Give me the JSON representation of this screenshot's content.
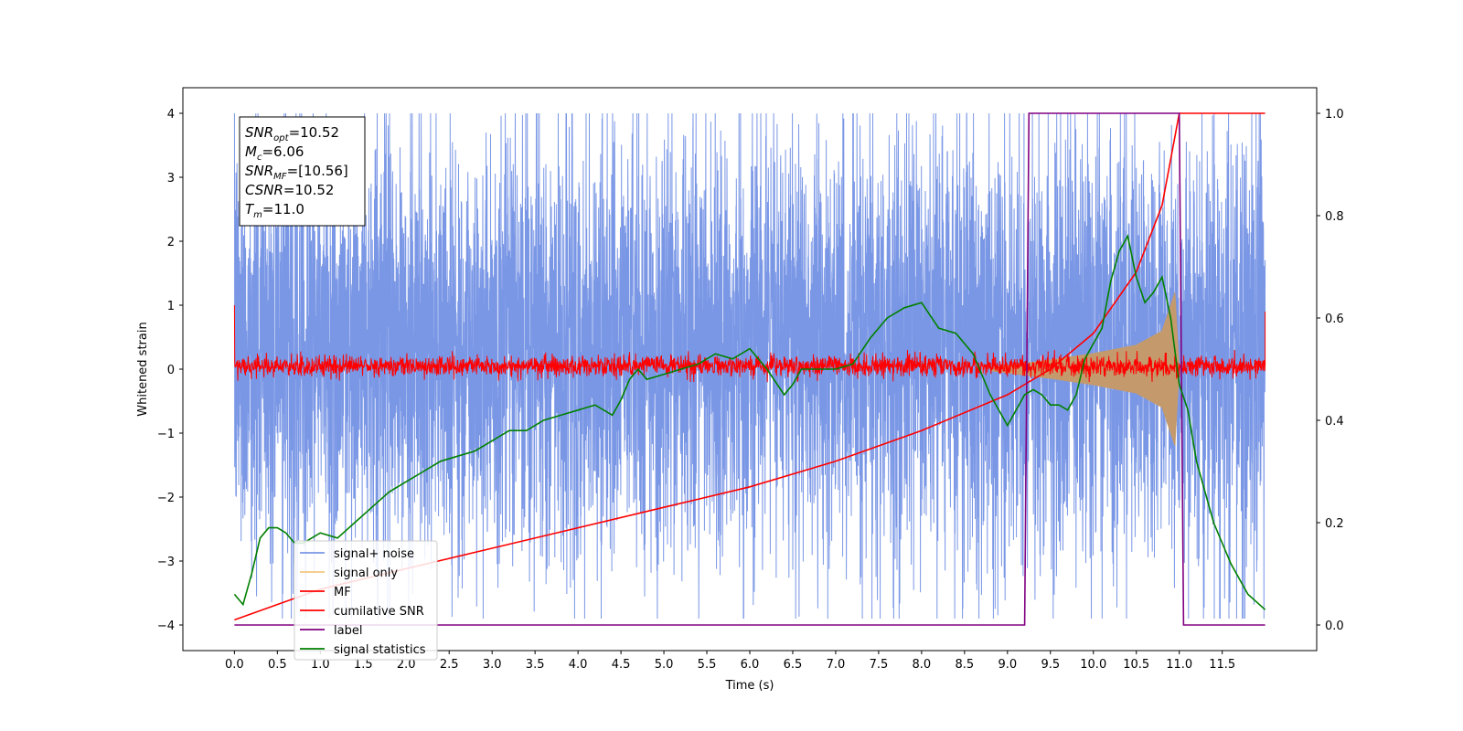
{
  "chart_data": {
    "type": "line",
    "xlabel": "Time (s)",
    "ylabel": "Whitened strain",
    "ylabel_right": "",
    "xlim": [
      -0.6,
      12.6
    ],
    "ylim": [
      -4.4,
      4.4
    ],
    "ylim_right": [
      -0.05,
      1.05
    ],
    "x_ticks": [
      "0.0",
      "0.5",
      "1.0",
      "1.5",
      "2.0",
      "2.5",
      "3.0",
      "3.5",
      "4.0",
      "4.5",
      "5.0",
      "5.5",
      "6.0",
      "6.5",
      "7.0",
      "7.5",
      "8.0",
      "8.5",
      "9.0",
      "9.5",
      "10.0",
      "10.5",
      "11.0",
      "11.5"
    ],
    "y_ticks": [
      "4",
      "3",
      "2",
      "1",
      "0",
      "−1",
      "−2",
      "−3",
      "−4"
    ],
    "y_ticks_right": [
      "1.0",
      "0.8",
      "0.6",
      "0.4",
      "0.2",
      "0.0"
    ],
    "grid": false,
    "legend_position": "lower-left",
    "info_box": [
      {
        "sym": "SNR",
        "sub": "opt",
        "val": "=10.52"
      },
      {
        "sym": "M",
        "sub": "c",
        "val": "=6.06"
      },
      {
        "sym": "SNR",
        "sub": "MF",
        "val": "=[10.56]"
      },
      {
        "sym": "CSNR",
        "sub": "",
        "val": "=10.52"
      },
      {
        "sym": "T",
        "sub": "m",
        "val": "=11.0"
      }
    ],
    "series": [
      {
        "name": "signal+ noise",
        "axis": "left",
        "color": "#7a97e6",
        "x_range": [
          0.0,
          12.0
        ],
        "noise_band": [
          -1.5,
          2.2
        ],
        "peak_min": -3.9,
        "peak_max": 4.0
      },
      {
        "name": "signal only",
        "axis": "left",
        "color": "#f5c77e",
        "envelope": {
          "x": [
            8.8,
            9.5,
            10.0,
            10.5,
            10.8,
            10.95,
            11.0
          ],
          "amp": [
            0.03,
            0.15,
            0.25,
            0.38,
            0.6,
            1.2,
            0.0
          ]
        }
      },
      {
        "name": "MF",
        "axis": "left",
        "color": "#ff0000",
        "x_range": [
          0.0,
          12.0
        ],
        "band": [
          -0.1,
          0.2
        ]
      },
      {
        "name": "cumilative SNR",
        "axis": "right",
        "color": "#ff0000",
        "x": [
          0.0,
          1.0,
          2.0,
          3.0,
          4.0,
          5.0,
          6.0,
          7.0,
          8.0,
          9.0,
          9.5,
          10.0,
          10.5,
          10.8,
          11.0,
          12.0
        ],
        "y": [
          0.01,
          0.07,
          0.11,
          0.15,
          0.19,
          0.23,
          0.27,
          0.32,
          0.38,
          0.45,
          0.5,
          0.57,
          0.69,
          0.82,
          1.0,
          1.0
        ]
      },
      {
        "name": "label",
        "axis": "right",
        "color": "#800080",
        "x": [
          0.0,
          9.2,
          9.25,
          11.0,
          11.05,
          12.0
        ],
        "y": [
          0.0,
          0.0,
          1.0,
          1.0,
          0.0,
          0.0
        ]
      },
      {
        "name": "signal statistics",
        "axis": "right",
        "color": "#008000",
        "x": [
          0.0,
          0.1,
          0.2,
          0.3,
          0.4,
          0.5,
          0.6,
          0.7,
          0.8,
          0.9,
          1.0,
          1.2,
          1.4,
          1.6,
          1.8,
          2.0,
          2.2,
          2.4,
          2.6,
          2.8,
          3.0,
          3.2,
          3.4,
          3.6,
          3.8,
          4.0,
          4.2,
          4.4,
          4.5,
          4.6,
          4.7,
          4.8,
          5.0,
          5.2,
          5.4,
          5.6,
          5.8,
          6.0,
          6.2,
          6.4,
          6.5,
          6.6,
          6.8,
          7.0,
          7.2,
          7.4,
          7.6,
          7.8,
          8.0,
          8.2,
          8.4,
          8.6,
          8.8,
          9.0,
          9.1,
          9.2,
          9.3,
          9.4,
          9.5,
          9.6,
          9.7,
          9.8,
          9.9,
          10.0,
          10.1,
          10.2,
          10.3,
          10.4,
          10.5,
          10.6,
          10.7,
          10.8,
          10.9,
          11.0,
          11.1,
          11.2,
          11.4,
          11.6,
          11.8,
          12.0
        ],
        "y": [
          0.06,
          0.04,
          0.1,
          0.17,
          0.19,
          0.19,
          0.18,
          0.16,
          0.16,
          0.17,
          0.18,
          0.17,
          0.2,
          0.23,
          0.26,
          0.28,
          0.3,
          0.32,
          0.33,
          0.34,
          0.36,
          0.38,
          0.38,
          0.4,
          0.41,
          0.42,
          0.43,
          0.41,
          0.44,
          0.48,
          0.5,
          0.48,
          0.49,
          0.5,
          0.51,
          0.53,
          0.52,
          0.54,
          0.5,
          0.45,
          0.47,
          0.5,
          0.5,
          0.5,
          0.51,
          0.56,
          0.6,
          0.62,
          0.63,
          0.58,
          0.57,
          0.53,
          0.45,
          0.39,
          0.42,
          0.45,
          0.46,
          0.45,
          0.43,
          0.43,
          0.42,
          0.45,
          0.52,
          0.55,
          0.58,
          0.67,
          0.73,
          0.76,
          0.68,
          0.63,
          0.65,
          0.68,
          0.6,
          0.47,
          0.42,
          0.32,
          0.2,
          0.12,
          0.06,
          0.03
        ]
      }
    ]
  }
}
